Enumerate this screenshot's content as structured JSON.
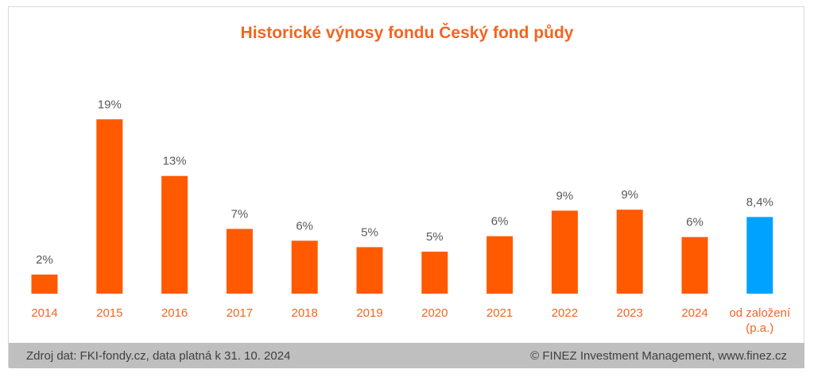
{
  "chart_data": {
    "type": "bar",
    "title": "Historické výnosy fondu Český fond půdy",
    "categories": [
      "2014",
      "2015",
      "2016",
      "2017",
      "2018",
      "2019",
      "2020",
      "2021",
      "2022",
      "2023",
      "2024",
      "od založení (p.a.)"
    ],
    "values": [
      2.1,
      19.1,
      12.9,
      7.1,
      5.8,
      5.1,
      4.6,
      6.3,
      9.1,
      9.2,
      6.2,
      8.4
    ],
    "data_labels": [
      "2%",
      "19%",
      "13%",
      "7%",
      "6%",
      "5%",
      "5%",
      "6%",
      "9%",
      "9%",
      "6%",
      "8,4%"
    ],
    "ylim": [
      0,
      20
    ],
    "grid": false,
    "legend": "none",
    "colors": {
      "bar": "#ff5a00",
      "highlight_bar": "#00a2ff",
      "category_label": "#f26522",
      "data_label": "#595959",
      "title": "#f26522"
    },
    "highlight_index": 11
  },
  "footer": {
    "source": "Zdroj dat: FKI-fondy.cz, data platná k 31. 10. 2024",
    "copyright": "© FINEZ Investment Management, www.finez.cz"
  }
}
